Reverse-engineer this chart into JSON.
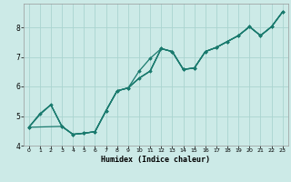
{
  "title": "",
  "xlabel": "Humidex (Indice chaleur)",
  "ylabel": "",
  "background_color": "#cceae7",
  "grid_color": "#aad4d0",
  "line_color": "#1a7a6e",
  "xlim": [
    -0.5,
    23.5
  ],
  "ylim": [
    4.0,
    8.8
  ],
  "xticks": [
    0,
    1,
    2,
    3,
    4,
    5,
    6,
    7,
    8,
    9,
    10,
    11,
    12,
    13,
    14,
    15,
    16,
    17,
    18,
    19,
    20,
    21,
    22,
    23
  ],
  "yticks": [
    4,
    5,
    6,
    7,
    8
  ],
  "lines": [
    {
      "x": [
        0,
        1,
        2,
        3,
        4,
        5,
        6,
        7,
        8,
        9,
        10,
        11,
        12,
        13,
        14,
        15,
        16,
        17,
        18,
        19,
        20,
        21,
        22,
        23
      ],
      "y": [
        4.62,
        5.05,
        5.38,
        4.65,
        4.38,
        4.42,
        4.47,
        5.18,
        5.85,
        5.95,
        6.28,
        6.52,
        7.28,
        7.18,
        6.58,
        6.62,
        7.18,
        7.32,
        7.52,
        7.72,
        8.02,
        7.72,
        8.02,
        8.52
      ],
      "markers": false
    },
    {
      "x": [
        0,
        1,
        2,
        3,
        4,
        5,
        6,
        7,
        8,
        9,
        10,
        11,
        12,
        13,
        14,
        15,
        16,
        17,
        18,
        19,
        20,
        21,
        22,
        23
      ],
      "y": [
        4.62,
        5.05,
        5.38,
        4.65,
        4.38,
        4.42,
        4.47,
        5.18,
        5.85,
        5.95,
        6.28,
        6.52,
        7.28,
        7.18,
        6.58,
        6.62,
        7.18,
        7.32,
        7.52,
        7.72,
        8.02,
        7.72,
        8.02,
        8.52
      ],
      "markers": false
    },
    {
      "x": [
        0,
        1,
        2,
        3,
        4,
        5,
        6,
        7,
        8,
        9,
        10,
        11,
        12,
        13,
        14,
        15,
        16,
        17,
        18,
        19,
        20,
        21,
        22,
        23
      ],
      "y": [
        4.62,
        5.08,
        5.38,
        4.65,
        4.38,
        4.42,
        4.47,
        5.18,
        5.85,
        5.95,
        6.52,
        6.95,
        7.28,
        7.18,
        6.58,
        6.62,
        7.18,
        7.32,
        7.52,
        7.72,
        8.02,
        7.72,
        8.02,
        8.52
      ],
      "markers": true
    },
    {
      "x": [
        0,
        3,
        4,
        5,
        6,
        7,
        8,
        9,
        10,
        11,
        12,
        13,
        14,
        15,
        16,
        17,
        18,
        19,
        20,
        21,
        22,
        23
      ],
      "y": [
        4.62,
        4.65,
        4.38,
        4.42,
        4.47,
        5.18,
        5.85,
        5.95,
        6.28,
        6.52,
        7.28,
        7.18,
        6.58,
        6.62,
        7.18,
        7.32,
        7.52,
        7.72,
        8.02,
        7.72,
        8.02,
        8.52
      ],
      "markers": true
    }
  ]
}
